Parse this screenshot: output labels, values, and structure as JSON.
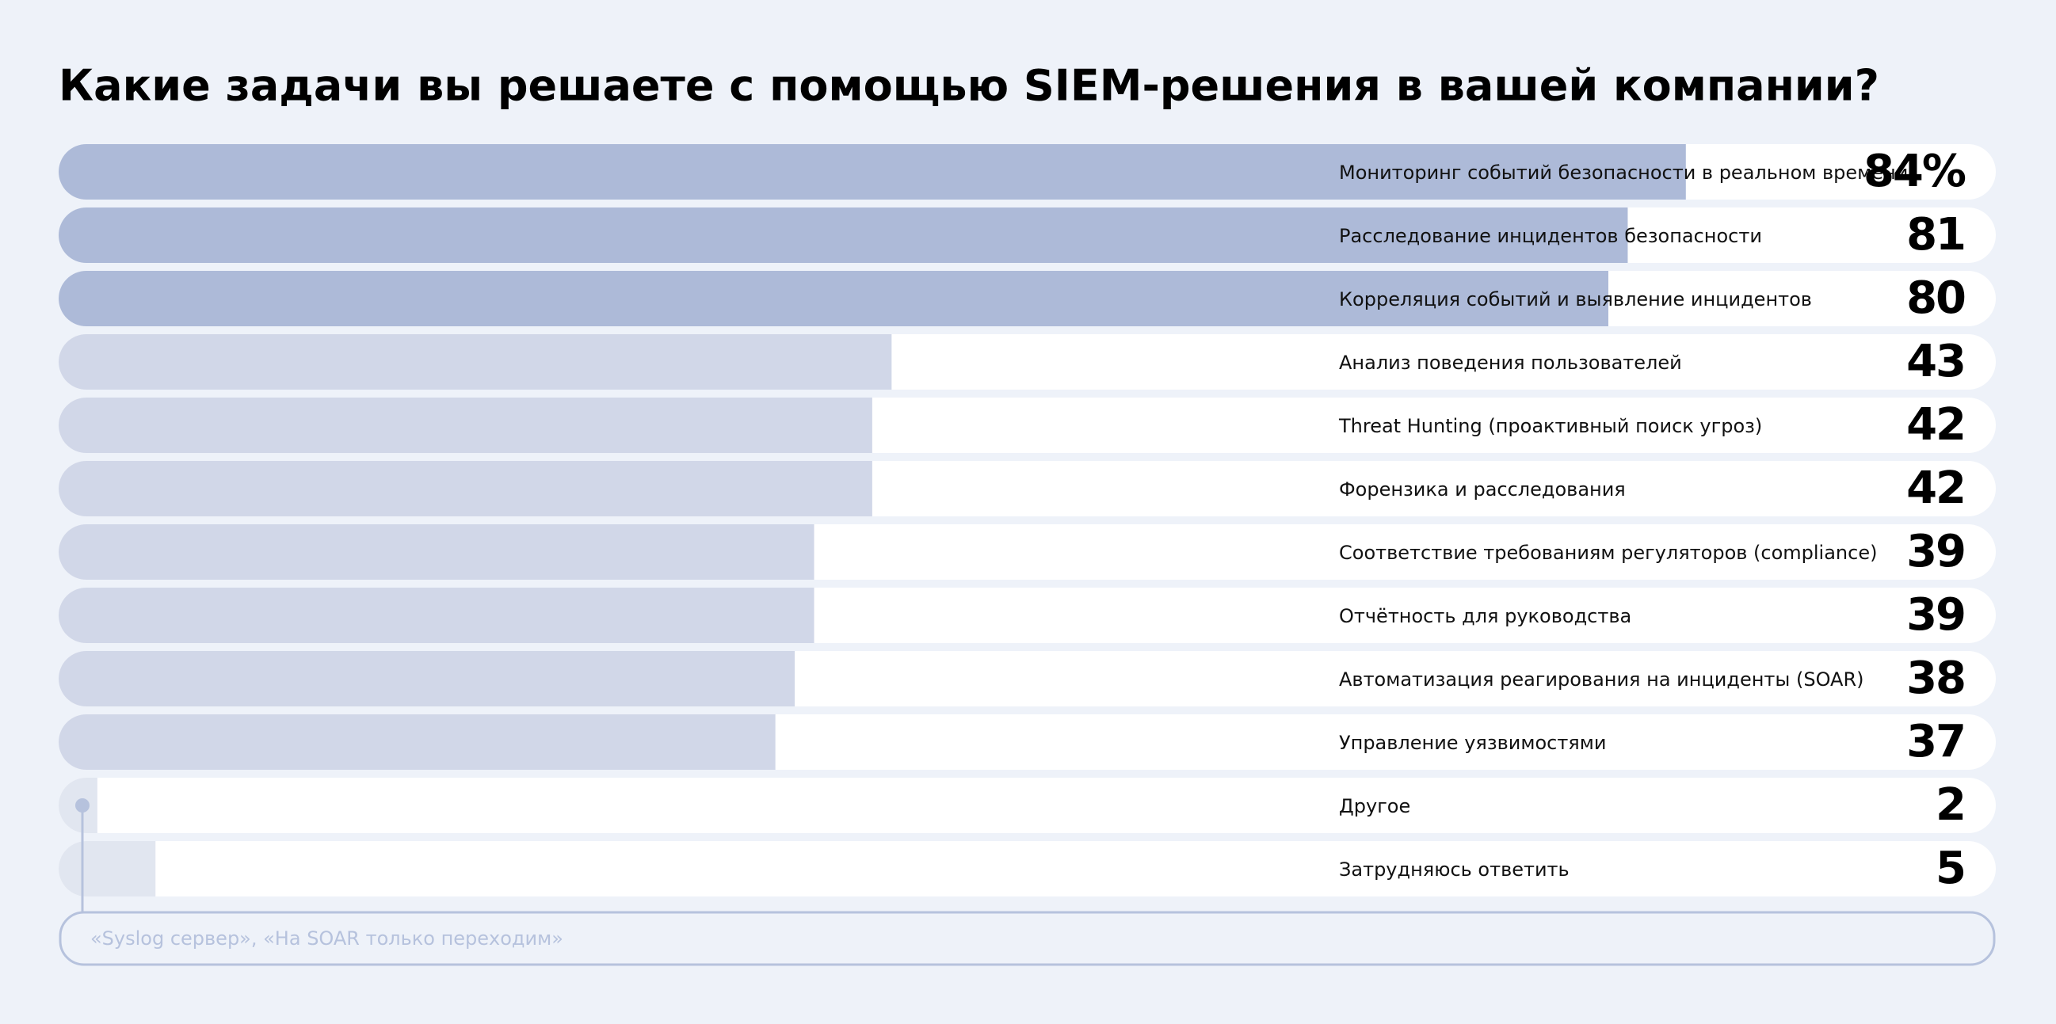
{
  "chart_data": {
    "type": "bar",
    "orientation": "horizontal",
    "title": "Какие задачи вы решаете с помощью SIEM-решения в вашей компании?",
    "categories": [
      "Мониторинг событий безопасности в реальном времени",
      "Расследование инцидентов безопасности",
      "Корреляция событий и выявление инцидентов",
      "Анализ поведения пользователей",
      "Threat Hunting (проактивный поиск угроз)",
      "Форензика и расследования",
      "Соответствие требованиям регуляторов (compliance)",
      "Отчётность для руководства",
      "Автоматизация реагирования на инциденты (SOAR)",
      "Управление уязвимостями",
      "Другое",
      "Затрудняюсь ответить"
    ],
    "values": [
      84,
      81,
      80,
      43,
      42,
      42,
      39,
      39,
      38,
      37,
      2,
      5
    ],
    "value_labels": [
      "84%",
      "81",
      "80",
      "43",
      "42",
      "42",
      "39",
      "39",
      "38",
      "37",
      "2",
      "5"
    ],
    "colors": [
      "#adbad8",
      "#adbad8",
      "#adbad8",
      "#d1d7e8",
      "#d1d7e8",
      "#d1d7e8",
      "#d1d7e8",
      "#d1d7e8",
      "#d1d7e8",
      "#d1d7e8",
      "#e1e6f0",
      "#e1e6f0"
    ],
    "xlim": [
      0,
      100
    ],
    "annotation": "«Syslog сервер», «На SOAR только переходим»"
  }
}
